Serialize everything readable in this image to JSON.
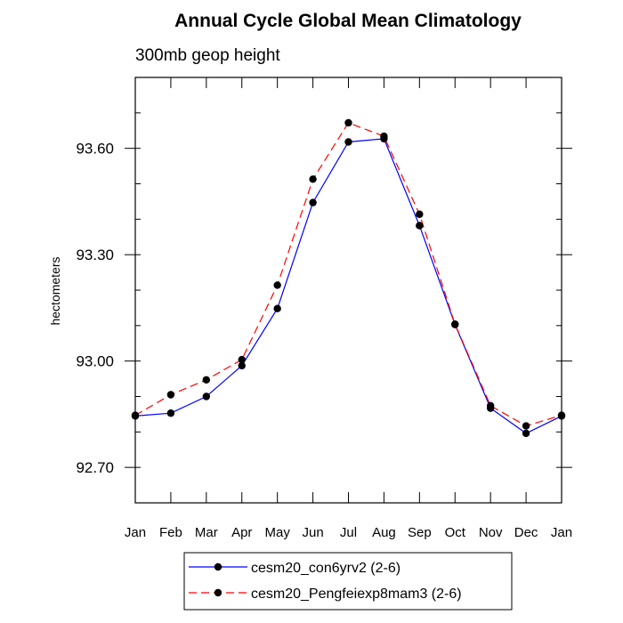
{
  "chart_data": {
    "type": "line",
    "title": "Annual Cycle Global Mean Climatology",
    "subtitle": "300mb geop height",
    "xlabel": "",
    "ylabel": "hectometers",
    "categories": [
      "Jan",
      "Feb",
      "Mar",
      "Apr",
      "May",
      "Jun",
      "Jul",
      "Aug",
      "Sep",
      "Oct",
      "Nov",
      "Dec",
      "Jan"
    ],
    "ylim": [
      92.6,
      93.8
    ],
    "yticks": [
      92.7,
      93.0,
      93.3,
      93.6
    ],
    "ytick_labels": [
      "92.70",
      "93.00",
      "93.30",
      "93.60"
    ],
    "series": [
      {
        "name": "cesm20_con6yrv2 (2-6)",
        "color": "#0000ff",
        "dash": "solid",
        "values": [
          92.845,
          92.853,
          92.9,
          92.987,
          93.148,
          93.447,
          93.618,
          93.627,
          93.382,
          93.103,
          92.867,
          92.796,
          92.845
        ]
      },
      {
        "name": "cesm20_Pengfeiexp8mam3 (2-6)",
        "color": "#ff0000",
        "dash": "dashed",
        "values": [
          92.847,
          92.905,
          92.947,
          93.004,
          93.214,
          93.513,
          93.672,
          93.634,
          93.414,
          93.104,
          92.874,
          92.817,
          92.847
        ]
      }
    ],
    "legend_position": "bottom-center",
    "grid": false
  }
}
